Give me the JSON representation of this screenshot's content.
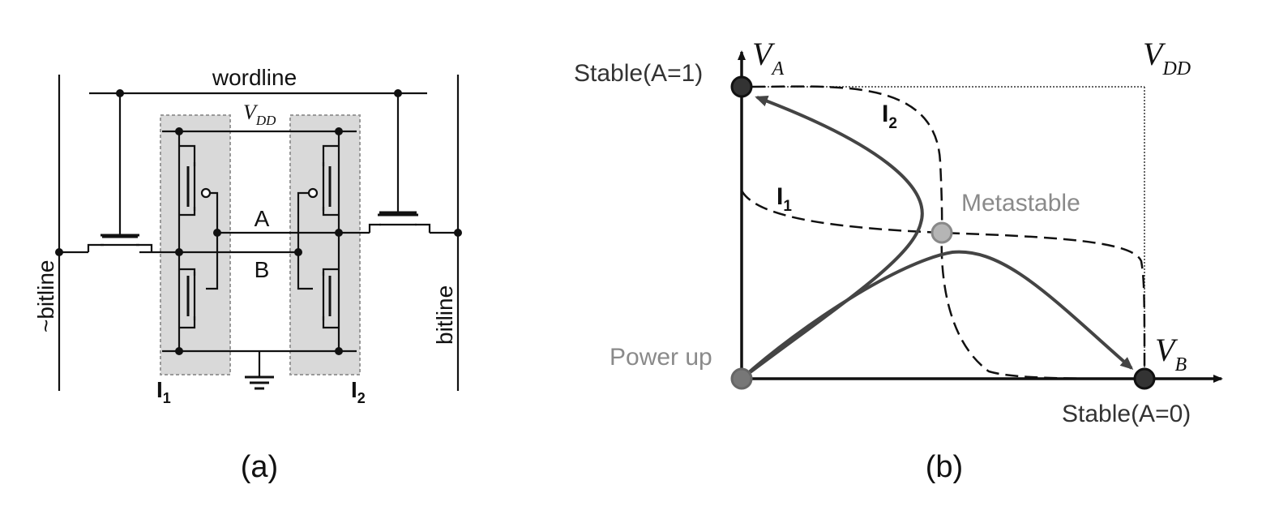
{
  "panel_a": {
    "caption": "(a)",
    "wordline_label": "wordline",
    "vdd": {
      "main": "V",
      "sub": "DD"
    },
    "node_a_label": "A",
    "node_b_label": "B",
    "left_bitline_label": "~bitline",
    "right_bitline_label": "bitline",
    "inverter1": {
      "main": "I",
      "sub": "1"
    },
    "inverter2": {
      "main": "I",
      "sub": "2"
    }
  },
  "panel_b": {
    "caption": "(b)",
    "va": {
      "main": "V",
      "sub": "A"
    },
    "vb": {
      "main": "V",
      "sub": "B"
    },
    "vdd": {
      "main": "V",
      "sub": "DD"
    },
    "stable_a1": "Stable(A=1)",
    "stable_a0": "Stable(A=0)",
    "metastable": "Metastable",
    "power_up": "Power up",
    "curve_i1": {
      "main": "I",
      "sub": "1"
    },
    "curve_i2": {
      "main": "I",
      "sub": "2"
    }
  },
  "colors": {
    "line": "#111111",
    "trajectory": "#444444",
    "inverter_box": "#d9d9d9",
    "metastable_label": "#8a8a8a",
    "power_up_label": "#8a8a8a"
  }
}
